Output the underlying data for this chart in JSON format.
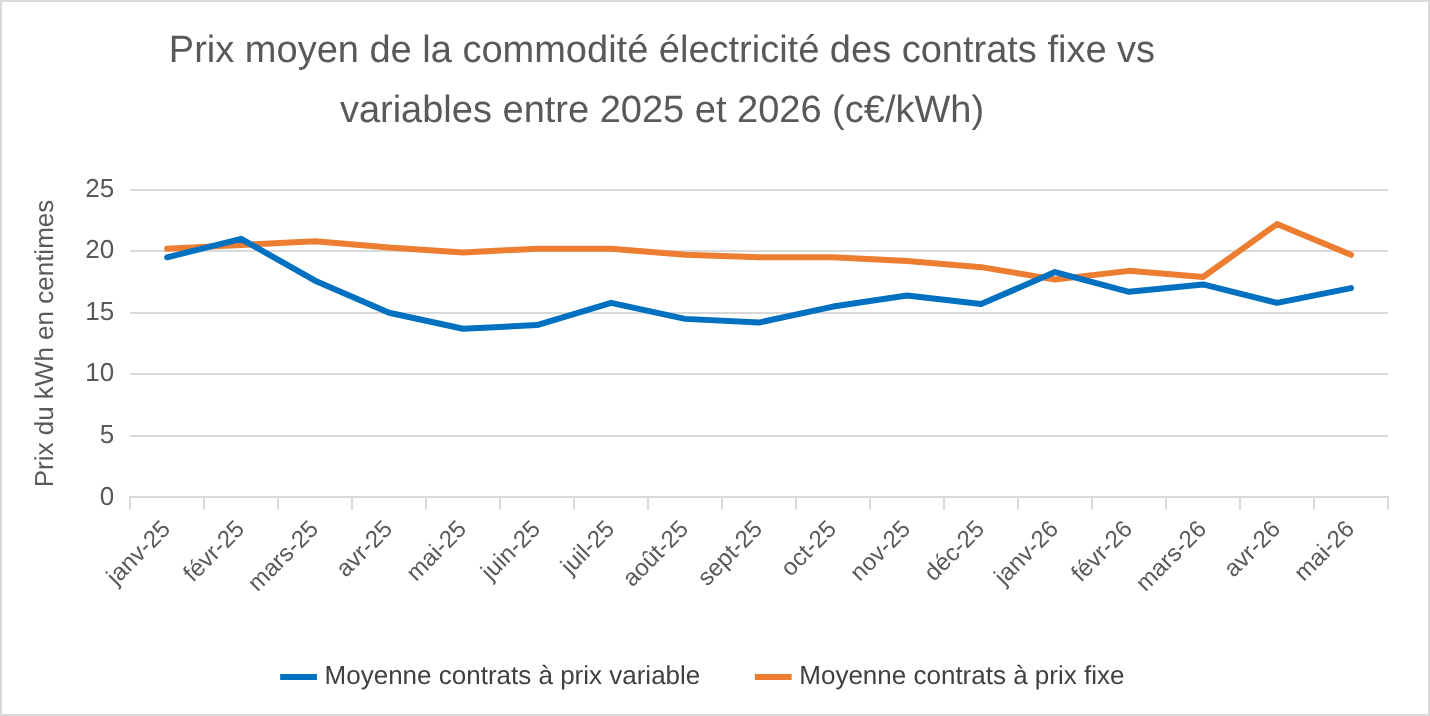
{
  "chart_data": {
    "type": "line",
    "title": "Prix moyen de la commodité électricité des contrats fixe vs variables entre 2025 et 2026 (c€/kWh)",
    "ylabel": "Prix du kWh en centimes",
    "categories": [
      "janv-25",
      "févr-25",
      "mars-25",
      "avr-25",
      "mai-25",
      "juin-25",
      "juil-25",
      "août-25",
      "sept-25",
      "oct-25",
      "nov-25",
      "déc-25",
      "janv-26",
      "févr-26",
      "mars-26",
      "avr-26",
      "mai-26"
    ],
    "series": [
      {
        "name": "Moyenne contrats à prix variable",
        "color": "#0070c0",
        "values": [
          19.5,
          21.0,
          17.6,
          15.0,
          13.7,
          14.0,
          15.8,
          14.5,
          14.2,
          15.5,
          16.4,
          15.7,
          18.3,
          16.7,
          17.3,
          15.8,
          17.0
        ]
      },
      {
        "name": "Moyenne contrats à prix fixe",
        "color": "#ed7d31",
        "values": [
          20.2,
          20.5,
          20.8,
          20.3,
          19.9,
          20.2,
          20.2,
          19.7,
          19.5,
          19.5,
          19.2,
          18.7,
          17.7,
          18.4,
          17.9,
          22.2,
          19.7
        ]
      }
    ],
    "ylim": [
      0,
      25
    ],
    "yticks": [
      0,
      5,
      10,
      15,
      20,
      25
    ],
    "grid": "y",
    "legend": "bottom",
    "marker": "none",
    "line_style": "solid"
  }
}
